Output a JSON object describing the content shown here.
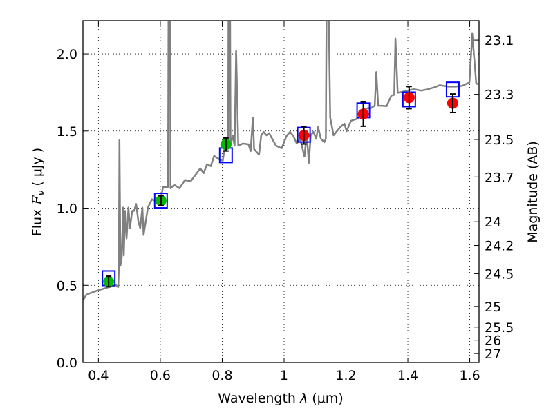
{
  "chart_data": {
    "type": "scatter",
    "xlabel": "Wavelength  λ (μm)",
    "ylabel": "Flux  Fν  ( μJy )",
    "ylabel_parts": {
      "pre": "Flux  ",
      "sym": "F",
      "sub": "ν",
      "post": "  ( μJy )"
    },
    "xlabel_parts": {
      "pre": "Wavelength  ",
      "sym": "λ",
      "post": " (μm)"
    },
    "y2label": "Magnitude (AB)",
    "xlim": [
      0.35,
      1.63
    ],
    "ylim": [
      0,
      2.215
    ],
    "grid": true,
    "x_ticks": [
      0.4,
      0.6,
      0.8,
      1.0,
      1.2,
      1.4,
      1.6
    ],
    "x_tick_labels": [
      "0.4",
      "0.6",
      "0.8",
      "1",
      "1.2",
      "1.4",
      "1.6"
    ],
    "y_ticks": [
      0.0,
      0.5,
      1.0,
      1.5,
      2.0
    ],
    "y_tick_labels": [
      "0.0",
      "0.5",
      "1.0",
      "1.5",
      "2.0"
    ],
    "y2_ticks": [
      23.1,
      23.3,
      23.5,
      23.7,
      24,
      24.2,
      24.5,
      25,
      25.5,
      26,
      27
    ],
    "y2_tick_labels": [
      "23.1",
      "23.3",
      "23.5",
      "23.7",
      "24",
      "24.2",
      "24.5",
      "25",
      "25.5",
      "26",
      "27"
    ],
    "ab_zeropoint": 23.9,
    "colors": {
      "spectrum": "#808080",
      "model": "#0000ff",
      "optical": "#00bb00",
      "nir": "#ff0000",
      "error": "#000000",
      "grid": "#000000"
    },
    "series": [
      {
        "name": "spectrum",
        "type": "line",
        "points": [
          [
            0.35,
            0.403
          ],
          [
            0.361,
            0.439
          ],
          [
            0.395,
            0.465
          ],
          [
            0.433,
            0.488
          ],
          [
            0.457,
            0.501
          ],
          [
            0.464,
            0.488
          ],
          [
            0.466,
            0.604
          ],
          [
            0.468,
            1.441
          ],
          [
            0.471,
            0.626
          ],
          [
            0.475,
            0.679
          ],
          [
            0.48,
            1.004
          ],
          [
            0.482,
            0.693
          ],
          [
            0.486,
            0.982
          ],
          [
            0.491,
            0.804
          ],
          [
            0.497,
            1.004
          ],
          [
            0.502,
            0.871
          ],
          [
            0.509,
            0.982
          ],
          [
            0.515,
            0.982
          ],
          [
            0.522,
            1.027
          ],
          [
            0.529,
            0.915
          ],
          [
            0.535,
            0.871
          ],
          [
            0.542,
            1.004
          ],
          [
            0.546,
            0.826
          ],
          [
            0.56,
            1.004
          ],
          [
            0.573,
            1.058
          ],
          [
            0.591,
            1.04
          ],
          [
            0.6,
            1.049
          ],
          [
            0.609,
            1.138
          ],
          [
            0.625,
            1.138
          ],
          [
            0.627,
            2.6
          ],
          [
            0.631,
            2.6
          ],
          [
            0.633,
            1.129
          ],
          [
            0.645,
            1.151
          ],
          [
            0.662,
            1.129
          ],
          [
            0.68,
            1.183
          ],
          [
            0.698,
            1.174
          ],
          [
            0.729,
            1.258
          ],
          [
            0.74,
            1.227
          ],
          [
            0.751,
            1.285
          ],
          [
            0.763,
            1.272
          ],
          [
            0.774,
            1.339
          ],
          [
            0.791,
            1.316
          ],
          [
            0.802,
            1.307
          ],
          [
            0.809,
            1.405
          ],
          [
            0.819,
            1.405
          ],
          [
            0.821,
            2.6
          ],
          [
            0.825,
            2.6
          ],
          [
            0.827,
            1.405
          ],
          [
            0.834,
            1.472
          ],
          [
            0.84,
            1.405
          ],
          [
            0.845,
            2.02
          ],
          [
            0.852,
            1.405
          ],
          [
            0.867,
            1.419
          ],
          [
            0.885,
            1.414
          ],
          [
            0.892,
            1.37
          ],
          [
            0.899,
            1.588
          ],
          [
            0.903,
            1.383
          ],
          [
            0.919,
            1.347
          ],
          [
            0.926,
            1.472
          ],
          [
            0.934,
            1.494
          ],
          [
            0.943,
            1.472
          ],
          [
            0.952,
            1.485
          ],
          [
            0.965,
            1.437
          ],
          [
            0.974,
            1.405
          ],
          [
            0.992,
            1.388
          ],
          [
            1.008,
            1.468
          ],
          [
            1.019,
            1.494
          ],
          [
            1.03,
            1.468
          ],
          [
            1.041,
            1.419
          ],
          [
            1.052,
            1.45
          ],
          [
            1.066,
            1.334
          ],
          [
            1.073,
            1.481
          ],
          [
            1.08,
            1.294
          ],
          [
            1.086,
            1.472
          ],
          [
            1.095,
            1.494
          ],
          [
            1.104,
            1.45
          ],
          [
            1.11,
            1.526
          ],
          [
            1.119,
            1.45
          ],
          [
            1.13,
            1.428
          ],
          [
            1.135,
            1.45
          ],
          [
            1.138,
            2.6
          ],
          [
            1.142,
            2.6
          ],
          [
            1.149,
            1.588
          ],
          [
            1.16,
            1.472
          ],
          [
            1.169,
            1.494
          ],
          [
            1.182,
            1.526
          ],
          [
            1.195,
            1.548
          ],
          [
            1.202,
            1.499
          ],
          [
            1.216,
            1.566
          ],
          [
            1.238,
            1.581
          ],
          [
            1.247,
            1.594
          ],
          [
            1.258,
            1.639
          ],
          [
            1.271,
            1.648
          ],
          [
            1.28,
            1.648
          ],
          [
            1.293,
            1.664
          ],
          [
            1.298,
            1.882
          ],
          [
            1.304,
            1.664
          ],
          [
            1.316,
            1.664
          ],
          [
            1.331,
            1.661
          ],
          [
            1.347,
            1.73
          ],
          [
            1.356,
            1.735
          ],
          [
            1.36,
            2.1
          ],
          [
            1.367,
            1.748
          ],
          [
            1.38,
            1.753
          ],
          [
            1.398,
            1.762
          ],
          [
            1.42,
            1.771
          ],
          [
            1.443,
            1.762
          ],
          [
            1.465,
            1.771
          ],
          [
            1.487,
            1.784
          ],
          [
            1.503,
            1.797
          ],
          [
            1.516,
            1.793
          ],
          [
            1.532,
            1.788
          ],
          [
            1.554,
            1.788
          ],
          [
            1.576,
            1.793
          ],
          [
            1.599,
            1.815
          ],
          [
            1.608,
            2.131
          ],
          [
            1.614,
            1.984
          ],
          [
            1.621,
            1.806
          ],
          [
            1.628,
            1.806
          ]
        ]
      },
      {
        "name": "model-photometry",
        "type": "square",
        "x": [
          0.433,
          0.602,
          0.812,
          1.064,
          1.256,
          1.404,
          1.545
        ],
        "y": [
          0.546,
          1.049,
          1.343,
          1.476,
          1.634,
          1.705,
          1.769
        ]
      },
      {
        "name": "optical-photometry",
        "type": "circle",
        "color_key": "optical",
        "x": [
          0.433,
          0.602,
          0.812
        ],
        "y": [
          0.525,
          1.049,
          1.413
        ],
        "yerr": [
          0.034,
          0.032,
          0.042
        ]
      },
      {
        "name": "nir-photometry",
        "type": "circle",
        "color_key": "nir",
        "x": [
          1.064,
          1.256,
          1.404,
          1.545
        ],
        "y": [
          1.472,
          1.61,
          1.717,
          1.68
        ],
        "yerr": [
          0.056,
          0.079,
          0.072,
          0.06
        ]
      }
    ]
  }
}
